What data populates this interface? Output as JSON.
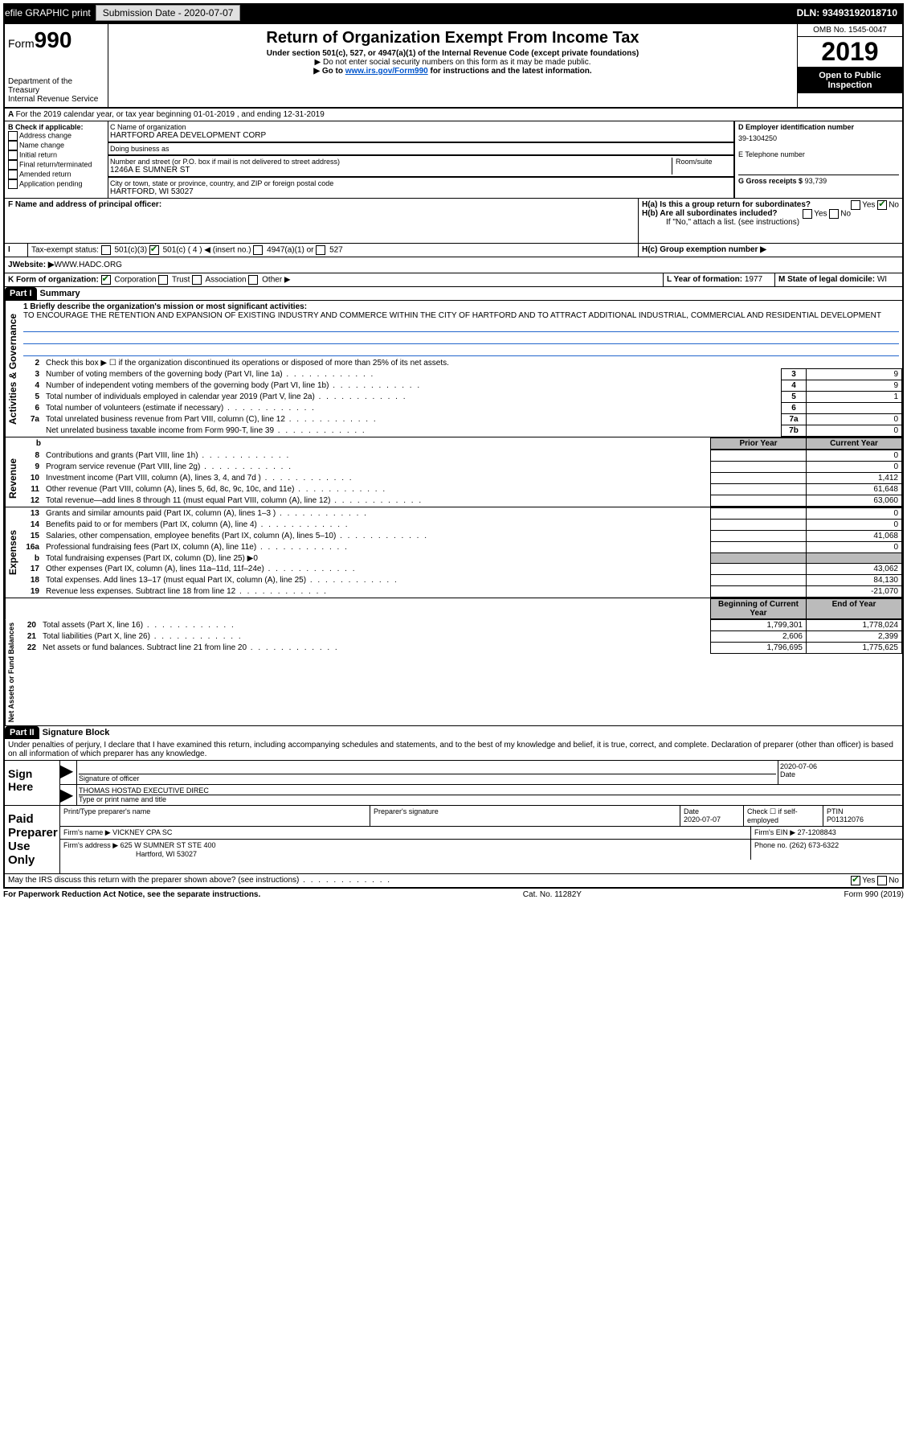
{
  "topbar": {
    "efile": "efile GRAPHIC print",
    "subdate_label": "Submission Date - ",
    "subdate": "2020-07-07",
    "dln_label": "DLN: ",
    "dln": "93493192018710"
  },
  "header": {
    "form_word": "Form",
    "form_num": "990",
    "dept": "Department of the Treasury\nInternal Revenue Service",
    "title": "Return of Organization Exempt From Income Tax",
    "sub1": "Under section 501(c), 527, or 4947(a)(1) of the Internal Revenue Code (except private foundations)",
    "sub2": "▶ Do not enter social security numbers on this form as it may be made public.",
    "sub3a": "▶ Go to ",
    "sub3_link": "www.irs.gov/Form990",
    "sub3b": " for instructions and the latest information.",
    "omb": "OMB No. 1545-0047",
    "year": "2019",
    "open": "Open to Public Inspection"
  },
  "lineA": "For the 2019 calendar year, or tax year beginning 01-01-2019   , and ending 12-31-2019",
  "B": {
    "label": "B Check if applicable:",
    "items": [
      "Address change",
      "Name change",
      "Initial return",
      "Final return/terminated",
      "Amended return",
      "Application pending"
    ]
  },
  "C": {
    "name_label": "C Name of organization",
    "name": "HARTFORD AREA DEVELOPMENT CORP",
    "dba_label": "Doing business as",
    "dba": "",
    "addr_label": "Number and street (or P.O. box if mail is not delivered to street address)",
    "room_label": "Room/suite",
    "addr": "1246A E SUMNER ST",
    "city_label": "City or town, state or province, country, and ZIP or foreign postal code",
    "city": "HARTFORD, WI  53027"
  },
  "D": {
    "label": "D Employer identification number",
    "val": "39-1304250"
  },
  "E": {
    "label": "E Telephone number",
    "val": ""
  },
  "G": {
    "label": "G Gross receipts $",
    "val": "93,739"
  },
  "F": {
    "label": "F  Name and address of principal officer:",
    "val": ""
  },
  "H": {
    "a": "H(a)  Is this a group return for subordinates?",
    "b": "H(b)  Are all subordinates included?",
    "b_note": "If \"No,\" attach a list. (see instructions)",
    "c": "H(c)  Group exemption number ▶",
    "yes": "Yes",
    "no": "No"
  },
  "I": {
    "label": "Tax-exempt status:",
    "opts": [
      "501(c)(3)",
      "501(c) ( 4 ) ◀ (insert no.)",
      "4947(a)(1) or",
      "527"
    ]
  },
  "J": {
    "label": "Website: ▶",
    "val": "WWW.HADC.ORG"
  },
  "K": {
    "label": "K Form of organization:",
    "opts": [
      "Corporation",
      "Trust",
      "Association",
      "Other ▶"
    ]
  },
  "L": {
    "label": "L Year of formation:",
    "val": "1977"
  },
  "M": {
    "label": "M State of legal domicile:",
    "val": "WI"
  },
  "part1": {
    "tag": "Part I",
    "title": "Summary"
  },
  "mission": {
    "label": "1  Briefly describe the organization's mission or most significant activities:",
    "text": "TO ENCOURAGE THE RETENTION AND EXPANSION OF EXISTING INDUSTRY AND COMMERCE WITHIN THE CITY OF HARTFORD AND TO ATTRACT ADDITIONAL INDUSTRIAL, COMMERCIAL AND RESIDENTIAL DEVELOPMENT"
  },
  "vlabels": {
    "act_gov": "Activities & Governance",
    "rev": "Revenue",
    "exp": "Expenses",
    "net": "Net Assets or Fund Balances"
  },
  "gov_lines": [
    {
      "n": "2",
      "t": "Check this box ▶ ☐ if the organization discontinued its operations or disposed of more than 25% of its net assets."
    },
    {
      "n": "3",
      "t": "Number of voting members of the governing body (Part VI, line 1a)",
      "box": "3",
      "v": "9"
    },
    {
      "n": "4",
      "t": "Number of independent voting members of the governing body (Part VI, line 1b)",
      "box": "4",
      "v": "9"
    },
    {
      "n": "5",
      "t": "Total number of individuals employed in calendar year 2019 (Part V, line 2a)",
      "box": "5",
      "v": "1"
    },
    {
      "n": "6",
      "t": "Total number of volunteers (estimate if necessary)",
      "box": "6",
      "v": ""
    },
    {
      "n": "7a",
      "t": "Total unrelated business revenue from Part VIII, column (C), line 12",
      "box": "7a",
      "v": "0"
    },
    {
      "n": "",
      "t": "Net unrelated business taxable income from Form 990-T, line 39",
      "box": "7b",
      "v": "0"
    }
  ],
  "col_headers": {
    "prior": "Prior Year",
    "current": "Current Year"
  },
  "rev_lines": [
    {
      "n": "8",
      "t": "Contributions and grants (Part VIII, line 1h)",
      "p": "",
      "c": "0"
    },
    {
      "n": "9",
      "t": "Program service revenue (Part VIII, line 2g)",
      "p": "",
      "c": "0"
    },
    {
      "n": "10",
      "t": "Investment income (Part VIII, column (A), lines 3, 4, and 7d )",
      "p": "",
      "c": "1,412"
    },
    {
      "n": "11",
      "t": "Other revenue (Part VIII, column (A), lines 5, 6d, 8c, 9c, 10c, and 11e)",
      "p": "",
      "c": "61,648"
    },
    {
      "n": "12",
      "t": "Total revenue—add lines 8 through 11 (must equal Part VIII, column (A), line 12)",
      "p": "",
      "c": "63,060"
    }
  ],
  "exp_lines": [
    {
      "n": "13",
      "t": "Grants and similar amounts paid (Part IX, column (A), lines 1–3 )",
      "p": "",
      "c": "0"
    },
    {
      "n": "14",
      "t": "Benefits paid to or for members (Part IX, column (A), line 4)",
      "p": "",
      "c": "0"
    },
    {
      "n": "15",
      "t": "Salaries, other compensation, employee benefits (Part IX, column (A), lines 5–10)",
      "p": "",
      "c": "41,068"
    },
    {
      "n": "16a",
      "t": "Professional fundraising fees (Part IX, column (A), line 11e)",
      "p": "",
      "c": "0"
    },
    {
      "n": "b",
      "t": "Total fundraising expenses (Part IX, column (D), line 25) ▶0",
      "gray": true
    },
    {
      "n": "17",
      "t": "Other expenses (Part IX, column (A), lines 11a–11d, 11f–24e)",
      "p": "",
      "c": "43,062"
    },
    {
      "n": "18",
      "t": "Total expenses. Add lines 13–17 (must equal Part IX, column (A), line 25)",
      "p": "",
      "c": "84,130"
    },
    {
      "n": "19",
      "t": "Revenue less expenses. Subtract line 18 from line 12",
      "p": "",
      "c": "-21,070"
    }
  ],
  "net_headers": {
    "begin": "Beginning of Current Year",
    "end": "End of Year"
  },
  "net_lines": [
    {
      "n": "20",
      "t": "Total assets (Part X, line 16)",
      "p": "1,799,301",
      "c": "1,778,024"
    },
    {
      "n": "21",
      "t": "Total liabilities (Part X, line 26)",
      "p": "2,606",
      "c": "2,399"
    },
    {
      "n": "22",
      "t": "Net assets or fund balances. Subtract line 21 from line 20",
      "p": "1,796,695",
      "c": "1,775,625"
    }
  ],
  "part2": {
    "tag": "Part II",
    "title": "Signature Block"
  },
  "perjury": "Under penalties of perjury, I declare that I have examined this return, including accompanying schedules and statements, and to the best of my knowledge and belief, it is true, correct, and complete. Declaration of preparer (other than officer) is based on all information of which preparer has any knowledge.",
  "sign": {
    "here": "Sign Here",
    "sig_label": "Signature of officer",
    "date_label": "Date",
    "date": "2020-07-06",
    "name": "THOMAS HOSTAD  EXECUTIVE DIREC",
    "name_label": "Type or print name and title"
  },
  "paid": {
    "title": "Paid Preparer Use Only",
    "h1": "Print/Type preparer's name",
    "h2": "Preparer's signature",
    "h3": "Date",
    "date": "2020-07-07",
    "h4": "Check ☐ if self-employed",
    "h5": "PTIN",
    "ptin": "P01312076",
    "firm_name_label": "Firm's name    ▶",
    "firm_name": "VICKNEY CPA SC",
    "firm_ein_label": "Firm's EIN ▶",
    "firm_ein": "27-1208843",
    "firm_addr_label": "Firm's address ▶",
    "firm_addr1": "625 W SUMNER ST STE 400",
    "firm_addr2": "Hartford, WI  53027",
    "phone_label": "Phone no.",
    "phone": "(262) 673-6322"
  },
  "discuss": "May the IRS discuss this return with the preparer shown above? (see instructions)",
  "footer": {
    "left": "For Paperwork Reduction Act Notice, see the separate instructions.",
    "mid": "Cat. No. 11282Y",
    "right": "Form 990 (2019)"
  }
}
